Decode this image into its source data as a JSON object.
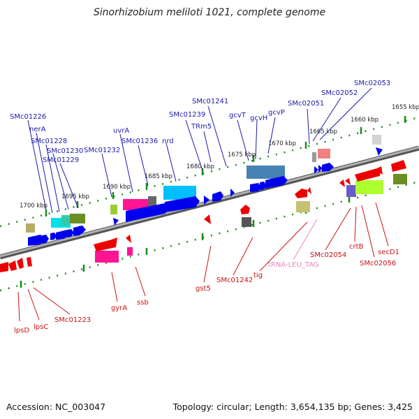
{
  "title": "Sinorhizobium meliloti 1021, complete genome",
  "footer": {
    "accession": "Accession: NC_003047",
    "topology": "Topology: circular; Length: 3,654,135 bp; Genes: 3,425"
  },
  "scale_labels": [
    "1700 kbp",
    "1695 kbp",
    "1690 kbp",
    "1685 kbp",
    "1680 kbp",
    "1675 kbp",
    "1670 kbp",
    "1665 kbp",
    "1660 kbp",
    "1655 kbp"
  ],
  "forward_labels": [
    "SMc01226",
    "nerA",
    "SMc01228",
    "SMc01230",
    "SMc01229",
    "SMc01232",
    "uvrA",
    "SMc01236",
    "nrd",
    "SMc01239",
    "SMc01241",
    "TRm5",
    "gcvT",
    "gcvH",
    "gcvP",
    "SMc02051",
    "SMc02052",
    "SMc02053"
  ],
  "reverse_labels": [
    "lpsD",
    "lpsC",
    "SMc01223",
    "gyrA",
    "ssb",
    "gst5",
    "SMc01242",
    "tig",
    "tRNA-LEU_TAG",
    "SMc02054",
    "crtB",
    "SMc02056",
    "secD1"
  ],
  "colors": {
    "forward_label": "#1a1aaa",
    "reverse_label": "#cc1111",
    "trna_label": "#ee88bb",
    "backbone": "#888888",
    "ticks": "#1a8a1a",
    "forward_arrow": "#0000ee",
    "reverse_arrow": "#ee0000"
  }
}
